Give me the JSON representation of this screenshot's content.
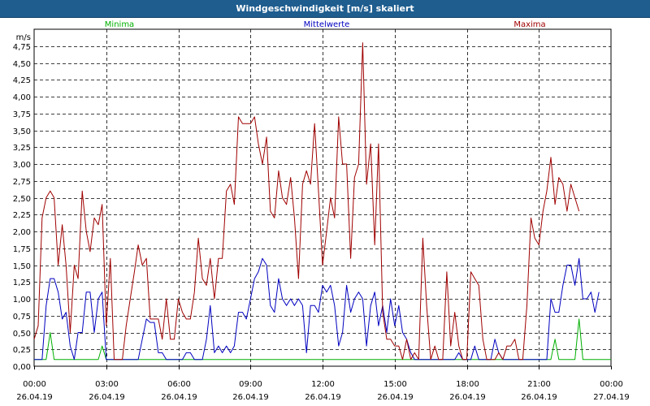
{
  "window": {
    "title": "Windgeschwindigkeit [m/s] skaliert"
  },
  "colors": {
    "minima": "#00b000",
    "mittelwerte": "#0000c0",
    "maxima": "#a00000",
    "grid": "#000000",
    "titlebar": "#1f5d8f"
  },
  "chart_data": {
    "type": "line",
    "title": "Windgeschwindigkeit [m/s] skaliert",
    "ylabel": "m/s",
    "xlabel": "",
    "ylim": [
      0,
      5.0
    ],
    "xlim": [
      0,
      24
    ],
    "grid": true,
    "legend_placement": "top",
    "y_ticks": [
      {
        "value": 0.0,
        "label": "0,00"
      },
      {
        "value": 0.25,
        "label": "0,25"
      },
      {
        "value": 0.5,
        "label": "0,50"
      },
      {
        "value": 0.75,
        "label": "0,75"
      },
      {
        "value": 1.0,
        "label": "1,00"
      },
      {
        "value": 1.25,
        "label": "1,25"
      },
      {
        "value": 1.5,
        "label": "1,50"
      },
      {
        "value": 1.75,
        "label": "1,75"
      },
      {
        "value": 2.0,
        "label": "2,00"
      },
      {
        "value": 2.25,
        "label": "2,25"
      },
      {
        "value": 2.5,
        "label": "2,50"
      },
      {
        "value": 2.75,
        "label": "2,75"
      },
      {
        "value": 3.0,
        "label": "3,00"
      },
      {
        "value": 3.25,
        "label": "3,25"
      },
      {
        "value": 3.5,
        "label": "3,50"
      },
      {
        "value": 3.75,
        "label": "3,75"
      },
      {
        "value": 4.0,
        "label": "4,00"
      },
      {
        "value": 4.25,
        "label": "4,25"
      },
      {
        "value": 4.5,
        "label": "4,50"
      },
      {
        "value": 4.75,
        "label": "4,75"
      }
    ],
    "x_ticks": [
      {
        "value": 0,
        "time": "00:00",
        "date": "26.04.19"
      },
      {
        "value": 3,
        "time": "03:00",
        "date": "26.04.19"
      },
      {
        "value": 6,
        "time": "06:00",
        "date": "26.04.19"
      },
      {
        "value": 9,
        "time": "09:00",
        "date": "26.04.19"
      },
      {
        "value": 12,
        "time": "12:00",
        "date": "26.04.19"
      },
      {
        "value": 15,
        "time": "15:00",
        "date": "26.04.19"
      },
      {
        "value": 18,
        "time": "18:00",
        "date": "26.04.19"
      },
      {
        "value": 21,
        "time": "21:00",
        "date": "26.04.19"
      },
      {
        "value": 24,
        "time": "00:00",
        "date": "27.04.19"
      }
    ],
    "series": [
      {
        "name": "Minima",
        "color": "#00b000",
        "points": [
          [
            0,
            0.1
          ],
          [
            0.5,
            0.1
          ],
          [
            0.67,
            0.5
          ],
          [
            0.83,
            0.1
          ],
          [
            2.67,
            0.1
          ],
          [
            2.83,
            0.3
          ],
          [
            3.0,
            0.1
          ],
          [
            21.5,
            0.1
          ],
          [
            21.67,
            0.4
          ],
          [
            21.83,
            0.1
          ],
          [
            22.5,
            0.1
          ],
          [
            22.67,
            0.7
          ],
          [
            22.83,
            0.1
          ],
          [
            24,
            0.1
          ]
        ]
      },
      {
        "name": "Mittelwerte",
        "color": "#0000c0",
        "points": [
          [
            0,
            0.1
          ],
          [
            0.33,
            0.1
          ],
          [
            0.5,
            0.9
          ],
          [
            0.67,
            1.3
          ],
          [
            0.83,
            1.3
          ],
          [
            1.0,
            1.1
          ],
          [
            1.17,
            0.7
          ],
          [
            1.33,
            0.8
          ],
          [
            1.5,
            0.3
          ],
          [
            1.67,
            0.1
          ],
          [
            1.83,
            0.5
          ],
          [
            2.0,
            0.5
          ],
          [
            2.17,
            1.1
          ],
          [
            2.33,
            1.1
          ],
          [
            2.5,
            0.5
          ],
          [
            2.67,
            1.0
          ],
          [
            2.83,
            1.1
          ],
          [
            3.0,
            0.1
          ],
          [
            3.17,
            0.1
          ],
          [
            3.33,
            0.1
          ],
          [
            3.5,
            0.1
          ],
          [
            3.83,
            0.1
          ],
          [
            4.0,
            0.1
          ],
          [
            4.33,
            0.1
          ],
          [
            4.5,
            0.4
          ],
          [
            4.67,
            0.7
          ],
          [
            4.83,
            0.65
          ],
          [
            5.0,
            0.65
          ],
          [
            5.17,
            0.2
          ],
          [
            5.33,
            0.2
          ],
          [
            5.5,
            0.1
          ],
          [
            5.67,
            0.1
          ],
          [
            5.83,
            0.1
          ],
          [
            6.0,
            0.1
          ],
          [
            6.17,
            0.1
          ],
          [
            6.33,
            0.2
          ],
          [
            6.5,
            0.2
          ],
          [
            6.67,
            0.1
          ],
          [
            6.83,
            0.1
          ],
          [
            7.0,
            0.1
          ],
          [
            7.17,
            0.4
          ],
          [
            7.33,
            0.9
          ],
          [
            7.5,
            0.2
          ],
          [
            7.67,
            0.3
          ],
          [
            7.83,
            0.2
          ],
          [
            8.0,
            0.3
          ],
          [
            8.17,
            0.2
          ],
          [
            8.33,
            0.3
          ],
          [
            8.5,
            0.8
          ],
          [
            8.67,
            0.8
          ],
          [
            8.83,
            0.7
          ],
          [
            9.0,
            1.0
          ],
          [
            9.17,
            1.3
          ],
          [
            9.33,
            1.4
          ],
          [
            9.5,
            1.6
          ],
          [
            9.67,
            1.5
          ],
          [
            9.83,
            0.9
          ],
          [
            10.0,
            0.8
          ],
          [
            10.17,
            1.3
          ],
          [
            10.33,
            1.0
          ],
          [
            10.5,
            0.9
          ],
          [
            10.67,
            1.0
          ],
          [
            10.83,
            0.9
          ],
          [
            11.0,
            1.0
          ],
          [
            11.17,
            0.9
          ],
          [
            11.33,
            0.2
          ],
          [
            11.5,
            0.9
          ],
          [
            11.67,
            0.9
          ],
          [
            11.83,
            0.8
          ],
          [
            12.0,
            1.2
          ],
          [
            12.17,
            1.1
          ],
          [
            12.33,
            1.2
          ],
          [
            12.5,
            0.9
          ],
          [
            12.67,
            0.3
          ],
          [
            12.83,
            0.5
          ],
          [
            13.0,
            1.2
          ],
          [
            13.17,
            0.8
          ],
          [
            13.33,
            1.0
          ],
          [
            13.5,
            1.1
          ],
          [
            13.67,
            1.0
          ],
          [
            13.83,
            0.3
          ],
          [
            14.0,
            0.9
          ],
          [
            14.17,
            1.1
          ],
          [
            14.33,
            0.6
          ],
          [
            14.5,
            0.9
          ],
          [
            14.67,
            0.5
          ],
          [
            14.83,
            1.0
          ],
          [
            15.0,
            0.6
          ],
          [
            15.17,
            0.9
          ],
          [
            15.33,
            0.5
          ],
          [
            15.5,
            0.4
          ],
          [
            15.67,
            0.2
          ],
          [
            15.83,
            0.1
          ],
          [
            16.17,
            0.1
          ],
          [
            16.5,
            0.1
          ],
          [
            16.83,
            0.1
          ],
          [
            17.17,
            0.1
          ],
          [
            17.5,
            0.1
          ],
          [
            17.67,
            0.2
          ],
          [
            17.83,
            0.1
          ],
          [
            18.0,
            0.1
          ],
          [
            18.17,
            0.1
          ],
          [
            18.33,
            0.3
          ],
          [
            18.5,
            0.1
          ],
          [
            18.67,
            0.1
          ],
          [
            19.0,
            0.1
          ],
          [
            19.17,
            0.4
          ],
          [
            19.33,
            0.2
          ],
          [
            19.5,
            0.1
          ],
          [
            19.67,
            0.1
          ],
          [
            20.0,
            0.1
          ],
          [
            20.33,
            0.1
          ],
          [
            20.67,
            0.1
          ],
          [
            21.0,
            0.1
          ],
          [
            21.33,
            0.1
          ],
          [
            21.5,
            1.0
          ],
          [
            21.67,
            0.8
          ],
          [
            21.83,
            0.8
          ],
          [
            22.0,
            1.2
          ],
          [
            22.17,
            1.5
          ],
          [
            22.33,
            1.5
          ],
          [
            22.5,
            1.2
          ],
          [
            22.67,
            1.6
          ],
          [
            22.83,
            1.0
          ],
          [
            23.0,
            1.0
          ],
          [
            23.17,
            1.1
          ],
          [
            23.33,
            0.8
          ],
          [
            23.5,
            1.1
          ]
        ]
      },
      {
        "name": "Maxima",
        "color": "#a00000",
        "points": [
          [
            0,
            0.4
          ],
          [
            0.17,
            0.6
          ],
          [
            0.33,
            2.2
          ],
          [
            0.5,
            2.5
          ],
          [
            0.67,
            2.6
          ],
          [
            0.83,
            2.5
          ],
          [
            1.0,
            1.5
          ],
          [
            1.17,
            2.1
          ],
          [
            1.33,
            1.5
          ],
          [
            1.5,
            0.5
          ],
          [
            1.67,
            1.5
          ],
          [
            1.83,
            1.3
          ],
          [
            2.0,
            2.6
          ],
          [
            2.17,
            2.0
          ],
          [
            2.33,
            1.7
          ],
          [
            2.5,
            2.2
          ],
          [
            2.67,
            2.1
          ],
          [
            2.83,
            2.4
          ],
          [
            3.0,
            0.6
          ],
          [
            3.17,
            1.6
          ],
          [
            3.33,
            0.1
          ],
          [
            3.5,
            0.1
          ],
          [
            3.67,
            0.1
          ],
          [
            3.83,
            0.6
          ],
          [
            4.0,
            1.0
          ],
          [
            4.17,
            1.4
          ],
          [
            4.33,
            1.8
          ],
          [
            4.5,
            1.5
          ],
          [
            4.67,
            1.6
          ],
          [
            4.83,
            0.7
          ],
          [
            5.0,
            0.7
          ],
          [
            5.17,
            0.7
          ],
          [
            5.33,
            0.4
          ],
          [
            5.5,
            1.0
          ],
          [
            5.67,
            0.4
          ],
          [
            5.83,
            0.4
          ],
          [
            6.0,
            1.0
          ],
          [
            6.17,
            0.8
          ],
          [
            6.33,
            0.7
          ],
          [
            6.5,
            0.7
          ],
          [
            6.67,
            1.1
          ],
          [
            6.83,
            1.9
          ],
          [
            7.0,
            1.3
          ],
          [
            7.17,
            1.2
          ],
          [
            7.33,
            1.6
          ],
          [
            7.5,
            1.0
          ],
          [
            7.67,
            1.6
          ],
          [
            7.83,
            1.6
          ],
          [
            8.0,
            2.6
          ],
          [
            8.17,
            2.7
          ],
          [
            8.33,
            2.4
          ],
          [
            8.5,
            3.7
          ],
          [
            8.67,
            3.6
          ],
          [
            8.83,
            3.6
          ],
          [
            9.0,
            3.6
          ],
          [
            9.17,
            3.7
          ],
          [
            9.33,
            3.3
          ],
          [
            9.5,
            3.0
          ],
          [
            9.67,
            3.4
          ],
          [
            9.83,
            2.3
          ],
          [
            10.0,
            2.2
          ],
          [
            10.17,
            2.9
          ],
          [
            10.33,
            2.5
          ],
          [
            10.5,
            2.4
          ],
          [
            10.67,
            2.8
          ],
          [
            10.83,
            2.2
          ],
          [
            11.0,
            1.3
          ],
          [
            11.17,
            2.7
          ],
          [
            11.33,
            2.9
          ],
          [
            11.5,
            2.7
          ],
          [
            11.67,
            3.6
          ],
          [
            11.83,
            2.6
          ],
          [
            12.0,
            1.5
          ],
          [
            12.17,
            2.0
          ],
          [
            12.33,
            2.5
          ],
          [
            12.5,
            2.2
          ],
          [
            12.67,
            3.7
          ],
          [
            12.83,
            3.0
          ],
          [
            13.0,
            3.0
          ],
          [
            13.17,
            1.6
          ],
          [
            13.33,
            2.8
          ],
          [
            13.5,
            3.0
          ],
          [
            13.67,
            4.8
          ],
          [
            13.83,
            2.7
          ],
          [
            14.0,
            3.3
          ],
          [
            14.17,
            1.8
          ],
          [
            14.33,
            3.3
          ],
          [
            14.5,
            0.8
          ],
          [
            14.67,
            0.4
          ],
          [
            14.83,
            0.4
          ],
          [
            15.0,
            0.3
          ],
          [
            15.17,
            0.3
          ],
          [
            15.33,
            0.1
          ],
          [
            15.5,
            0.4
          ],
          [
            15.67,
            0.1
          ],
          [
            15.83,
            0.2
          ],
          [
            16.0,
            0.1
          ],
          [
            16.17,
            1.9
          ],
          [
            16.33,
            0.9
          ],
          [
            16.5,
            0.1
          ],
          [
            16.67,
            0.3
          ],
          [
            16.83,
            0.1
          ],
          [
            17.0,
            0.1
          ],
          [
            17.17,
            1.4
          ],
          [
            17.33,
            0.3
          ],
          [
            17.5,
            0.8
          ],
          [
            17.67,
            0.3
          ],
          [
            17.83,
            0.1
          ],
          [
            18.0,
            0.1
          ],
          [
            18.17,
            1.4
          ],
          [
            18.33,
            1.3
          ],
          [
            18.5,
            1.2
          ],
          [
            18.67,
            0.4
          ],
          [
            18.83,
            0.1
          ],
          [
            19.0,
            0.1
          ],
          [
            19.17,
            0.1
          ],
          [
            19.33,
            0.2
          ],
          [
            19.5,
            0.1
          ],
          [
            19.67,
            0.3
          ],
          [
            19.83,
            0.3
          ],
          [
            20.0,
            0.4
          ],
          [
            20.17,
            0.1
          ],
          [
            20.33,
            0.1
          ],
          [
            20.5,
            0.9
          ],
          [
            20.67,
            2.2
          ],
          [
            20.83,
            1.9
          ],
          [
            21.0,
            1.8
          ],
          [
            21.17,
            2.3
          ],
          [
            21.33,
            2.6
          ],
          [
            21.5,
            3.1
          ],
          [
            21.67,
            2.4
          ],
          [
            21.83,
            2.8
          ],
          [
            22.0,
            2.7
          ],
          [
            22.17,
            2.3
          ],
          [
            22.33,
            2.7
          ],
          [
            22.5,
            2.5
          ],
          [
            22.67,
            2.3
          ]
        ]
      }
    ]
  }
}
